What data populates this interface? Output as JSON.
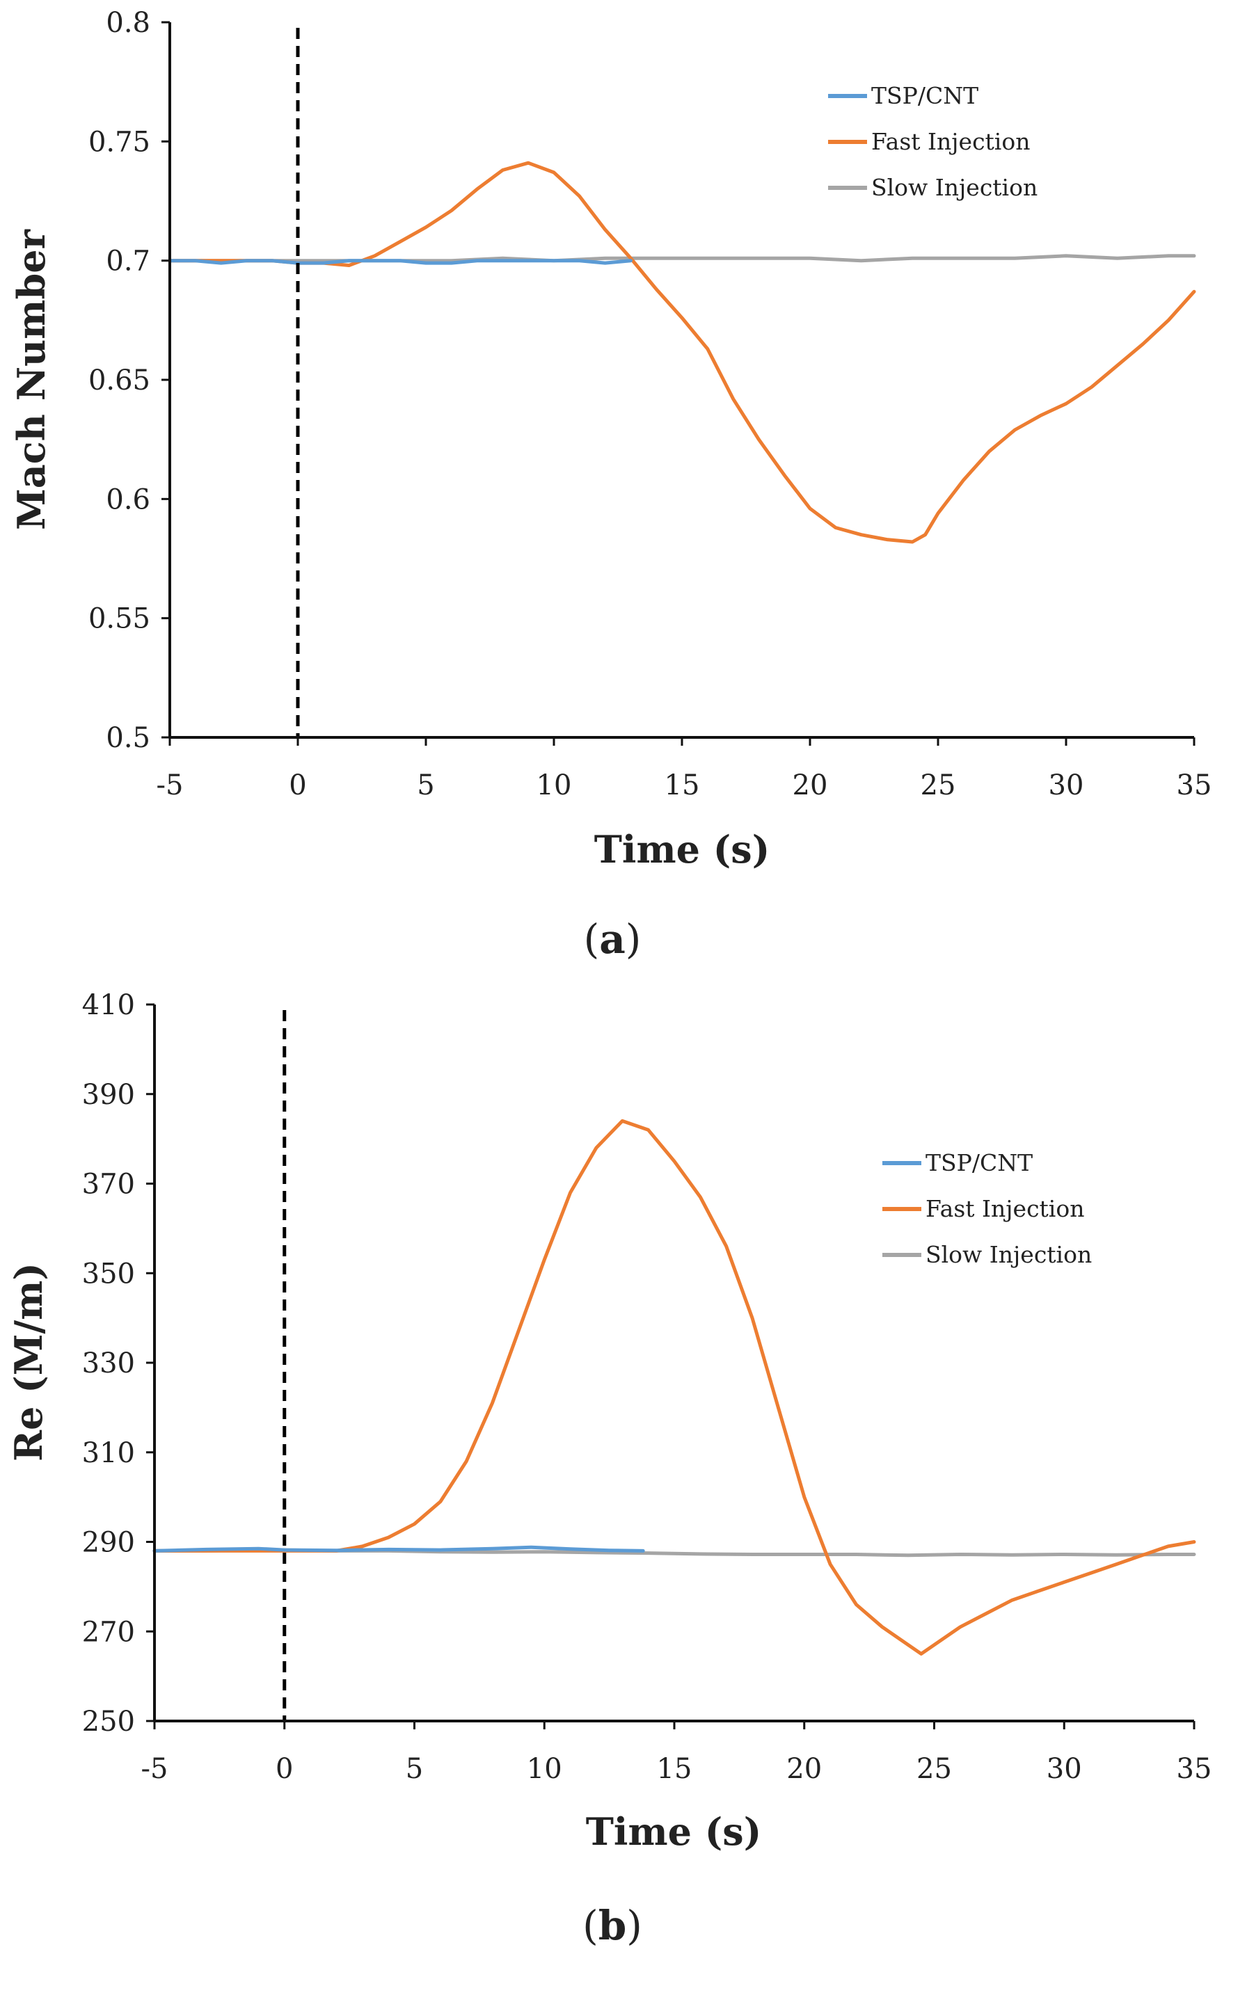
{
  "colors": {
    "tsp_cnt": "#5b9bd5",
    "fast_injection": "#ed7d31",
    "slow_injection": "#a5a5a5",
    "axis": "#111111",
    "marker_line": "#000000"
  },
  "chart_data": [
    {
      "type": "line",
      "panel_label": "a",
      "xlabel": "Time (s)",
      "ylabel": "Mach Number",
      "xlim": [
        -5,
        35
      ],
      "ylim": [
        0.5,
        0.8
      ],
      "x_ticks": [
        "-5",
        "0",
        "5",
        "10",
        "15",
        "20",
        "25",
        "30",
        "35"
      ],
      "y_ticks": [
        "0.5",
        "0.55",
        "0.6",
        "0.65",
        "0.7",
        "0.75",
        "0.8"
      ],
      "vertical_marker_x": 0,
      "legend_position": "top-right",
      "grid": false,
      "series": [
        {
          "name": "TSP/CNT",
          "color_key": "tsp_cnt",
          "x": [
            -5,
            -4,
            -3,
            -2,
            -1,
            0,
            1,
            2,
            3,
            4,
            5,
            6,
            7,
            8,
            9,
            10,
            11,
            12,
            13
          ],
          "y": [
            0.7,
            0.7,
            0.699,
            0.7,
            0.7,
            0.699,
            0.699,
            0.7,
            0.7,
            0.7,
            0.699,
            0.699,
            0.7,
            0.7,
            0.7,
            0.7,
            0.7,
            0.699,
            0.7
          ]
        },
        {
          "name": "Fast Injection",
          "color_key": "fast_injection",
          "x": [
            -5,
            -3,
            -1,
            0,
            1,
            2,
            3,
            4,
            5,
            6,
            7,
            8,
            9,
            10,
            11,
            12,
            13,
            14,
            15,
            16,
            17,
            18,
            19,
            20,
            21,
            22,
            23,
            24,
            24.5,
            25,
            26,
            27,
            28,
            29,
            30,
            31,
            32,
            33,
            34,
            35
          ],
          "y": [
            0.7,
            0.7,
            0.7,
            0.699,
            0.699,
            0.698,
            0.702,
            0.708,
            0.714,
            0.721,
            0.73,
            0.738,
            0.741,
            0.737,
            0.727,
            0.713,
            0.701,
            0.688,
            0.676,
            0.663,
            0.642,
            0.625,
            0.61,
            0.596,
            0.588,
            0.585,
            0.583,
            0.582,
            0.585,
            0.594,
            0.608,
            0.62,
            0.629,
            0.635,
            0.64,
            0.647,
            0.656,
            0.665,
            0.675,
            0.687
          ]
        },
        {
          "name": "Slow Injection",
          "color_key": "slow_injection",
          "x": [
            -5,
            -3,
            -1,
            0,
            2,
            4,
            6,
            8,
            10,
            12,
            14,
            16,
            18,
            20,
            22,
            24,
            26,
            28,
            30,
            32,
            34,
            35
          ],
          "y": [
            0.7,
            0.7,
            0.7,
            0.7,
            0.7,
            0.7,
            0.7,
            0.701,
            0.7,
            0.701,
            0.701,
            0.701,
            0.701,
            0.701,
            0.7,
            0.701,
            0.701,
            0.701,
            0.702,
            0.701,
            0.702,
            0.702
          ]
        }
      ]
    },
    {
      "type": "line",
      "panel_label": "b",
      "xlabel": "Time (s)",
      "ylabel": "Re (M/m)",
      "xlim": [
        -5,
        35
      ],
      "ylim": [
        250,
        410
      ],
      "x_ticks": [
        "-5",
        "0",
        "5",
        "10",
        "15",
        "20",
        "25",
        "30",
        "35"
      ],
      "y_ticks": [
        "250",
        "270",
        "290",
        "310",
        "330",
        "350",
        "370",
        "390",
        "410"
      ],
      "vertical_marker_x": 0,
      "legend_position": "top-right",
      "grid": false,
      "series": [
        {
          "name": "TSP/CNT",
          "color_key": "tsp_cnt",
          "x": [
            -5,
            -3,
            -1,
            0,
            2,
            4,
            6,
            8,
            9.5,
            11,
            12.5,
            13.8
          ],
          "y": [
            288,
            288.3,
            288.5,
            288.2,
            288.1,
            288.3,
            288.2,
            288.5,
            288.8,
            288.4,
            288.1,
            288
          ]
        },
        {
          "name": "Fast Injection",
          "color_key": "fast_injection",
          "x": [
            -5,
            -3,
            -1,
            0,
            1,
            2,
            3,
            4,
            5,
            6,
            7,
            8,
            9,
            10,
            11,
            12,
            13,
            14,
            15,
            16,
            17,
            18,
            19,
            20,
            21,
            22,
            23,
            24,
            24.5,
            25,
            26,
            27,
            28,
            29,
            30,
            31,
            32,
            33,
            34,
            35
          ],
          "y": [
            288,
            288,
            288,
            288,
            288,
            288,
            289,
            291,
            294,
            299,
            308,
            321,
            337,
            353,
            368,
            378,
            384,
            382,
            375,
            367,
            356,
            340,
            320,
            300,
            285,
            276,
            271,
            267,
            265,
            267,
            271,
            274,
            277,
            279,
            281,
            283,
            285,
            287,
            289,
            290
          ]
        },
        {
          "name": "Slow Injection",
          "color_key": "slow_injection",
          "x": [
            -5,
            -3,
            -1,
            0,
            2,
            4,
            6,
            8,
            10,
            12,
            14,
            16,
            18,
            20,
            22,
            24,
            26,
            28,
            30,
            32,
            34,
            35
          ],
          "y": [
            288,
            288,
            288.2,
            288.2,
            288,
            288,
            287.8,
            287.7,
            287.8,
            287.6,
            287.5,
            287.3,
            287.2,
            287.2,
            287.2,
            287,
            287.2,
            287.1,
            287.2,
            287.1,
            287.2,
            287.2
          ]
        }
      ]
    }
  ]
}
